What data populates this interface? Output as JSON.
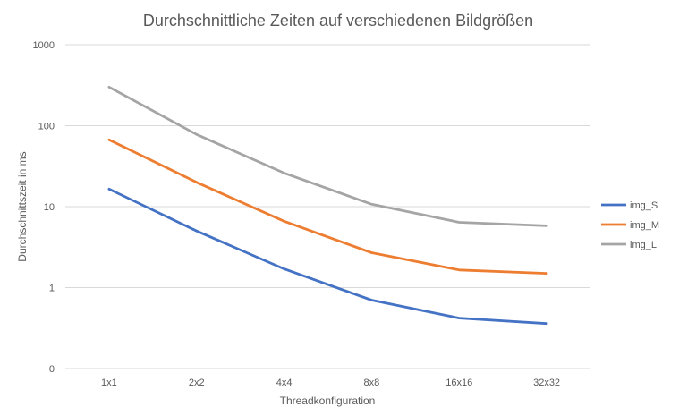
{
  "chart_data": {
    "type": "line",
    "title": "Durchschnittliche Zeiten auf verschiedenen Bildgrößen",
    "xlabel": "Threadkonfiguration",
    "ylabel": "Durchschnittszeit in ms",
    "y_scale": "log",
    "y_ticks": [
      "0",
      "1",
      "10",
      "100",
      "1000"
    ],
    "categories": [
      "1x1",
      "2x2",
      "4x4",
      "8x8",
      "16x16",
      "32x32"
    ],
    "grid": "horizontal",
    "legend_position": "right",
    "series": [
      {
        "name": "img_S",
        "color": "#4472C4",
        "values": [
          16.5,
          5.0,
          1.7,
          0.7,
          0.42,
          0.36
        ]
      },
      {
        "name": "img_M",
        "color": "#ED7D31",
        "values": [
          67,
          20,
          6.6,
          2.7,
          1.65,
          1.5
        ]
      },
      {
        "name": "img_L",
        "color": "#A5A5A5",
        "values": [
          300,
          78,
          26,
          10.7,
          6.4,
          5.8
        ]
      }
    ]
  }
}
